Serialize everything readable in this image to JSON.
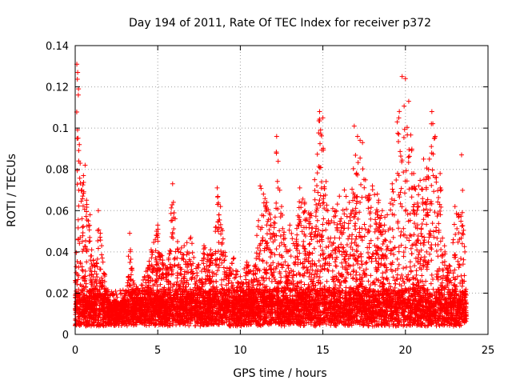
{
  "chart_data": {
    "type": "scatter",
    "title": "Day 194 of 2011, Rate Of TEC Index for receiver p372",
    "xlabel": "GPS time / hours",
    "ylabel": "ROTI / TECUs",
    "xlim": [
      0,
      25
    ],
    "ylim": [
      0,
      0.14
    ],
    "x_ticks": [
      0,
      5,
      10,
      15,
      20,
      25
    ],
    "x_tick_labels": [
      "0",
      "5",
      "10",
      "15",
      "20",
      "25"
    ],
    "y_ticks": [
      0,
      0.02,
      0.04,
      0.06,
      0.08,
      0.1,
      0.12,
      0.14
    ],
    "y_tick_labels": [
      "0",
      "0.02",
      "0.04",
      "0.06",
      "0.08",
      "0.1",
      "0.12",
      "0.14"
    ],
    "grid": true,
    "marker": "plus",
    "marker_color": "#ff0000",
    "series": [
      {
        "points_note": "dense cloud of thousands of points; representative envelope values listed",
        "x": [
          0.0,
          0.1,
          0.15,
          0.2,
          0.25,
          0.3,
          0.4,
          0.5,
          0.6,
          0.7,
          0.8,
          0.9,
          1.0,
          1.1,
          1.2,
          1.4,
          1.6,
          1.8,
          2.0,
          2.3,
          2.6,
          3.0,
          3.3,
          3.5,
          3.8,
          4.2,
          4.6,
          5.0,
          5.3,
          5.6,
          5.9,
          6.2,
          6.6,
          7.0,
          7.4,
          7.8,
          8.2,
          8.6,
          8.8,
          9.2,
          9.6,
          10.0,
          10.4,
          10.8,
          11.0,
          11.2,
          11.4,
          11.6,
          11.8,
          12.0,
          12.2,
          12.5,
          12.8,
          13.0,
          13.3,
          13.6,
          13.9,
          14.2,
          14.5,
          14.8,
          15.0,
          15.3,
          15.6,
          16.0,
          16.3,
          16.6,
          16.9,
          17.1,
          17.4,
          17.7,
          18.0,
          18.3,
          18.6,
          18.9,
          19.2,
          19.5,
          19.8,
          20.0,
          20.2,
          20.5,
          20.8,
          21.1,
          21.4,
          21.6,
          21.8,
          22.1,
          22.4,
          22.7,
          23.0,
          23.2,
          23.4,
          23.6
        ],
        "y": [
          0.019,
          0.131,
          0.127,
          0.119,
          0.092,
          0.083,
          0.07,
          0.077,
          0.082,
          0.063,
          0.055,
          0.058,
          0.041,
          0.036,
          0.033,
          0.06,
          0.043,
          0.029,
          0.018,
          0.012,
          0.014,
          0.018,
          0.049,
          0.026,
          0.022,
          0.028,
          0.041,
          0.053,
          0.036,
          0.032,
          0.073,
          0.045,
          0.043,
          0.047,
          0.033,
          0.043,
          0.041,
          0.071,
          0.062,
          0.032,
          0.037,
          0.028,
          0.035,
          0.031,
          0.048,
          0.072,
          0.068,
          0.064,
          0.058,
          0.049,
          0.096,
          0.062,
          0.041,
          0.053,
          0.043,
          0.071,
          0.064,
          0.058,
          0.075,
          0.108,
          0.105,
          0.06,
          0.061,
          0.067,
          0.07,
          0.064,
          0.101,
          0.096,
          0.093,
          0.066,
          0.072,
          0.068,
          0.06,
          0.058,
          0.073,
          0.103,
          0.125,
          0.124,
          0.113,
          0.078,
          0.072,
          0.085,
          0.08,
          0.108,
          0.096,
          0.078,
          0.039,
          0.033,
          0.062,
          0.058,
          0.087,
          0.04
        ]
      }
    ]
  }
}
